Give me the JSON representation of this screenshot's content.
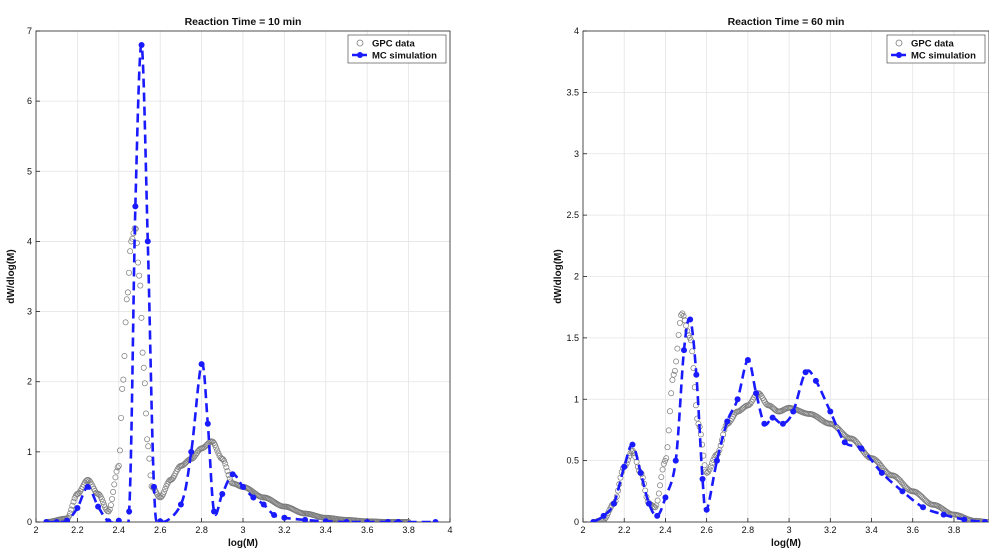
{
  "chart_data": [
    {
      "type": "line",
      "title": "Reaction Time = 10 min",
      "xlabel": "log(M)",
      "ylabel": "dW/dlog(M)",
      "xlim": [
        2,
        4
      ],
      "ylim": [
        0,
        7
      ],
      "xticks": [
        "2",
        "2.2",
        "2.4",
        "2.6",
        "2.8",
        "3",
        "3.2",
        "3.4",
        "3.6",
        "3.8",
        "4"
      ],
      "yticks": [
        "0",
        "1",
        "2",
        "3",
        "4",
        "5",
        "6",
        "7"
      ],
      "grid": true,
      "legend_position": "top-right",
      "series": [
        {
          "name": "GPC data",
          "style": "open-circle-markers",
          "color": "#7a7a7a",
          "x": [
            2.05,
            2.15,
            2.2,
            2.25,
            2.3,
            2.35,
            2.4,
            2.42,
            2.44,
            2.46,
            2.48,
            2.5,
            2.52,
            2.54,
            2.56,
            2.6,
            2.65,
            2.7,
            2.75,
            2.8,
            2.85,
            2.9,
            2.95,
            3.0,
            3.1,
            3.2,
            3.3,
            3.4,
            3.5,
            3.6,
            3.7,
            3.8
          ],
          "y": [
            0,
            0.05,
            0.4,
            0.6,
            0.4,
            0.15,
            0.8,
            2.0,
            3.2,
            4.0,
            4.2,
            3.5,
            2.2,
            1.1,
            0.5,
            0.35,
            0.6,
            0.8,
            0.9,
            1.05,
            1.15,
            0.9,
            0.55,
            0.5,
            0.35,
            0.22,
            0.12,
            0.06,
            0.03,
            0.01,
            0,
            0
          ]
        },
        {
          "name": "MC simulation",
          "style": "dashed-line-filled-markers",
          "color": "#1a1aff",
          "x": [
            2.05,
            2.1,
            2.15,
            2.2,
            2.25,
            2.3,
            2.35,
            2.4,
            2.45,
            2.48,
            2.51,
            2.54,
            2.57,
            2.6,
            2.7,
            2.75,
            2.8,
            2.83,
            2.86,
            2.9,
            2.95,
            3.0,
            3.05,
            3.1,
            3.15,
            3.2,
            3.3,
            3.4,
            3.5,
            3.6,
            3.7,
            3.75,
            3.93
          ],
          "y": [
            0,
            0,
            0.02,
            0.2,
            0.5,
            0.22,
            0.01,
            0.02,
            0.15,
            4.5,
            6.8,
            4.0,
            0.5,
            0.01,
            0.25,
            1.0,
            2.25,
            1.4,
            0.15,
            0.4,
            0.68,
            0.5,
            0.35,
            0.25,
            0.1,
            0.06,
            0.03,
            0.01,
            0,
            0,
            0,
            0,
            0
          ]
        }
      ]
    },
    {
      "type": "line",
      "title": "Reaction Time = 60 min",
      "xlabel": "log(M)",
      "ylabel": "dW/dlog(M)",
      "xlim": [
        2,
        3.97
      ],
      "ylim": [
        0,
        4
      ],
      "xticks": [
        "2",
        "2.2",
        "2.4",
        "2.6",
        "2.8",
        "3",
        "3.2",
        "3.4",
        "3.6",
        "3.8"
      ],
      "yticks": [
        "0",
        "0.5",
        "1",
        "1.5",
        "2",
        "2.5",
        "3",
        "3.5",
        "4"
      ],
      "grid": true,
      "legend_position": "top-right",
      "series": [
        {
          "name": "GPC data",
          "style": "open-circle-markers",
          "color": "#7a7a7a",
          "x": [
            2.05,
            2.1,
            2.15,
            2.2,
            2.24,
            2.28,
            2.32,
            2.35,
            2.4,
            2.44,
            2.48,
            2.52,
            2.56,
            2.6,
            2.65,
            2.7,
            2.75,
            2.8,
            2.85,
            2.9,
            2.95,
            3.0,
            3.1,
            3.2,
            3.3,
            3.4,
            3.5,
            3.6,
            3.7,
            3.8,
            3.9,
            3.97
          ],
          "y": [
            0,
            0.02,
            0.15,
            0.45,
            0.58,
            0.4,
            0.15,
            0.12,
            0.5,
            1.2,
            1.7,
            1.5,
            0.8,
            0.4,
            0.55,
            0.8,
            0.9,
            0.95,
            1.05,
            0.95,
            0.9,
            0.93,
            0.88,
            0.8,
            0.68,
            0.52,
            0.38,
            0.25,
            0.14,
            0.06,
            0.01,
            0
          ]
        },
        {
          "name": "MC simulation",
          "style": "dashed-line-filled-markers",
          "color": "#1a1aff",
          "x": [
            2.05,
            2.1,
            2.15,
            2.2,
            2.24,
            2.28,
            2.32,
            2.36,
            2.4,
            2.45,
            2.49,
            2.52,
            2.55,
            2.58,
            2.6,
            2.65,
            2.7,
            2.75,
            2.8,
            2.84,
            2.88,
            2.92,
            2.97,
            3.02,
            3.08,
            3.13,
            3.2,
            3.27,
            3.35,
            3.45,
            3.55,
            3.65,
            3.75,
            3.85,
            3.95
          ],
          "y": [
            0,
            0.05,
            0.15,
            0.45,
            0.63,
            0.4,
            0.15,
            0.05,
            0.2,
            0.5,
            1.4,
            1.65,
            1.2,
            0.35,
            0.1,
            0.5,
            0.82,
            1.0,
            1.32,
            1.05,
            0.8,
            0.85,
            0.8,
            0.9,
            1.22,
            1.15,
            0.9,
            0.65,
            0.6,
            0.4,
            0.25,
            0.12,
            0.06,
            0.02,
            0
          ]
        }
      ]
    }
  ]
}
